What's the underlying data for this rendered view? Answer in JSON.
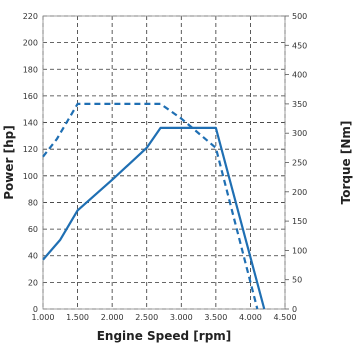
{
  "chart_data": {
    "type": "line",
    "xlabel": "Engine Speed [rpm]",
    "ylabel": "Power [hp]",
    "y2label": "Torque [Nm]",
    "xlim": [
      1000,
      4500
    ],
    "ylim": [
      0,
      220
    ],
    "y2lim": [
      0,
      500
    ],
    "grid": true,
    "x_ticks": [
      1000,
      1500,
      2000,
      2500,
      3000,
      3500,
      4000,
      4500
    ],
    "x_tick_labels": [
      "1.000",
      "1.500",
      "2.000",
      "2.500",
      "3.000",
      "3.500",
      "4.000",
      "4.500"
    ],
    "y_ticks": [
      0,
      20,
      40,
      60,
      80,
      100,
      120,
      140,
      160,
      180,
      200,
      220
    ],
    "y_tick_labels": [
      "0",
      "20",
      "40",
      "60",
      "80",
      "100",
      "120",
      "140",
      "160",
      "180",
      "200",
      "220"
    ],
    "y2_ticks": [
      0,
      50,
      100,
      150,
      200,
      250,
      300,
      350,
      400,
      450,
      500
    ],
    "y2_tick_labels": [
      "0",
      "50",
      "100",
      "150",
      "200",
      "250",
      "300",
      "350",
      "400",
      "450",
      "500"
    ],
    "series": [
      {
        "axis": "left",
        "style": "solid",
        "color": "#1f6fb3",
        "x": [
          1000,
          1250,
          1500,
          2000,
          2500,
          2700,
          3000,
          3500,
          4200
        ],
        "values": [
          37,
          52,
          74,
          97,
          121,
          136,
          136,
          136,
          0
        ]
      },
      {
        "axis": "right",
        "style": "dashed",
        "color": "#1f6fb3",
        "x": [
          1000,
          1200,
          1500,
          2000,
          2700,
          3000,
          3500,
          4100
        ],
        "values": [
          260,
          290,
          350,
          350,
          350,
          325,
          275,
          0
        ]
      }
    ]
  }
}
